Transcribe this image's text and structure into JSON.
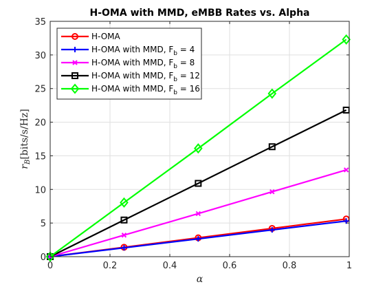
{
  "chart_data": {
    "type": "line",
    "title": "H-OMA with MMD, eMBB Rates vs. Alpha",
    "xlabel": "α",
    "ylabel_main": "r",
    "ylabel_sub": "B",
    "ylabel_unit": "[bits/s/Hz]",
    "xlim": [
      0,
      1
    ],
    "ylim": [
      0,
      35
    ],
    "xticks": [
      0,
      0.2,
      0.4,
      0.6,
      0.8,
      1
    ],
    "yticks": [
      0,
      5,
      10,
      15,
      20,
      25,
      30,
      35
    ],
    "xtick_labels": [
      "0",
      "0.2",
      "0.4",
      "0.6",
      "0.8",
      "1"
    ],
    "ytick_labels": [
      "0",
      "5",
      "10",
      "15",
      "20",
      "25",
      "30",
      "35"
    ],
    "grid": true,
    "legend_position": "top-left",
    "x": [
      0,
      0.247,
      0.495,
      0.742,
      0.99
    ],
    "series": [
      {
        "name_main": "H-OMA",
        "name_sub": "",
        "name_tail": "",
        "marker": "circle",
        "color": "#ff0000",
        "values": [
          0,
          1.4,
          2.8,
          4.2,
          5.6
        ]
      },
      {
        "name_main": "H-OMA with MMD, F",
        "name_sub": "b",
        "name_tail": " = 4",
        "marker": "plus",
        "color": "#0000ff",
        "values": [
          0,
          1.32,
          2.65,
          3.98,
          5.3
        ]
      },
      {
        "name_main": "H-OMA with MMD, F",
        "name_sub": "b",
        "name_tail": " = 8",
        "marker": "x",
        "color": "#ff00ff",
        "values": [
          0,
          3.2,
          6.4,
          9.65,
          12.9
        ]
      },
      {
        "name_main": "H-OMA with MMD, F",
        "name_sub": "b",
        "name_tail": " = 12",
        "marker": "square",
        "color": "#000000",
        "values": [
          0,
          5.45,
          10.9,
          16.35,
          21.8
        ]
      },
      {
        "name_main": "H-OMA with MMD, F",
        "name_sub": "b",
        "name_tail": " = 16",
        "marker": "diamond",
        "color": "#00ff00",
        "values": [
          0,
          8.05,
          16.1,
          24.25,
          32.3
        ]
      }
    ]
  }
}
